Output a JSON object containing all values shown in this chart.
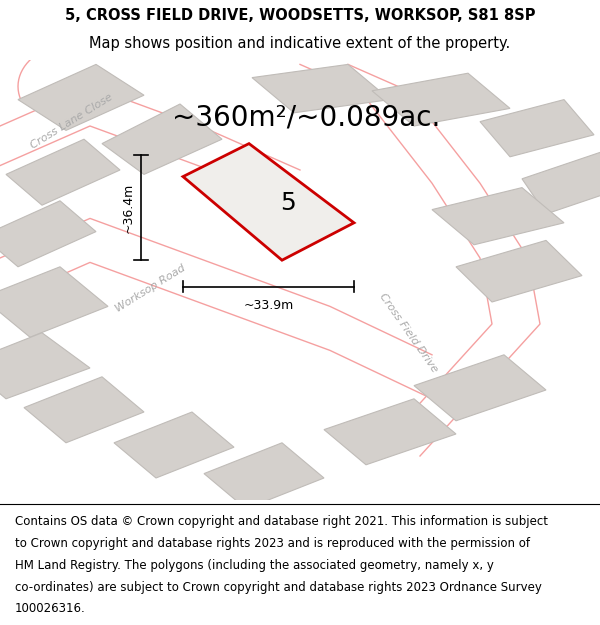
{
  "title_line1": "5, CROSS FIELD DRIVE, WOODSETTS, WORKSOP, S81 8SP",
  "title_line2": "Map shows position and indicative extent of the property.",
  "area_text": "~360m²/~0.089ac.",
  "property_number": "5",
  "dim_horizontal": "~33.9m",
  "dim_vertical": "~36.4m",
  "bg_color": "#f0eeeb",
  "map_bg_color": "#f0eeeb",
  "building_fill": "#d4d0cc",
  "road_stroke": "#f5a0a0",
  "property_stroke": "#cc0000",
  "property_fill": "#f0eeeb",
  "footer_lines": [
    "Contains OS data © Crown copyright and database right 2021. This information is subject",
    "to Crown copyright and database rights 2023 and is reproduced with the permission of",
    "HM Land Registry. The polygons (including the associated geometry, namely x, y",
    "co-ordinates) are subject to Crown copyright and database rights 2023 Ordnance Survey",
    "100026316."
  ],
  "title_fontsize": 10.5,
  "footer_fontsize": 8.5,
  "area_fontsize": 20,
  "label_fontsize": 9,
  "road_label_fontsize": 8,
  "property_num_fontsize": 18
}
